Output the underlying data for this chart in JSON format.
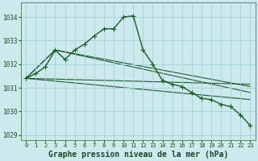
{
  "title": "Graphe pression niveau de la mer (hPa)",
  "background_color": "#cce9ed",
  "grid_color": "#a8d0d8",
  "line_color": "#1a5c28",
  "xlim": [
    -0.5,
    23.5
  ],
  "ylim": [
    1028.8,
    1034.6
  ],
  "yticks": [
    1029,
    1030,
    1031,
    1032,
    1033,
    1034
  ],
  "xticks": [
    0,
    1,
    2,
    3,
    4,
    5,
    6,
    7,
    8,
    9,
    10,
    11,
    12,
    13,
    14,
    15,
    16,
    17,
    18,
    19,
    20,
    21,
    22,
    23
  ],
  "series_main": {
    "x": [
      0,
      1,
      2,
      3,
      4,
      5,
      6,
      7,
      8,
      9,
      10,
      11,
      12,
      13,
      14,
      15,
      16,
      17,
      18,
      19,
      20,
      21,
      22,
      23
    ],
    "y": [
      1031.4,
      1031.6,
      1031.9,
      1032.6,
      1032.2,
      1032.6,
      1032.85,
      1033.2,
      1033.5,
      1033.5,
      1034.0,
      1034.05,
      1032.6,
      1032.0,
      1031.3,
      1031.15,
      1031.05,
      1030.8,
      1030.55,
      1030.5,
      1030.3,
      1030.2,
      1029.85,
      1029.4
    ]
  },
  "series_lines": [
    {
      "x": [
        0,
        23
      ],
      "y": [
        1031.4,
        1031.15
      ]
    },
    {
      "x": [
        0,
        23
      ],
      "y": [
        1031.4,
        1030.5
      ]
    },
    {
      "x": [
        0,
        3,
        23
      ],
      "y": [
        1031.4,
        1032.6,
        1031.05
      ]
    },
    {
      "x": [
        0,
        3,
        23
      ],
      "y": [
        1031.4,
        1032.6,
        1030.8
      ]
    }
  ],
  "tick_fontsize": 5.5,
  "xlabel_fontsize": 7.0,
  "marker": "+",
  "markersize": 4,
  "linewidth": 1.0
}
